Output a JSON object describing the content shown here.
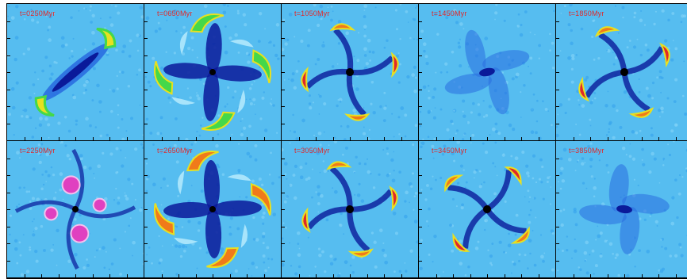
{
  "panels": [
    {
      "label": "t=0250Myr",
      "style": "bar"
    },
    {
      "label": "t=0650Myr",
      "style": "cross"
    },
    {
      "label": "t=1050Myr",
      "style": "spiral"
    },
    {
      "label": "t=1450Myr",
      "style": "diffuse"
    },
    {
      "label": "t=1850Myr",
      "style": "spiral"
    },
    {
      "label": "t=2250Myr",
      "style": "clumps"
    },
    {
      "label": "t=2650Myr",
      "style": "cross"
    },
    {
      "label": "t=3050Myr",
      "style": "spiral"
    },
    {
      "label": "t=3450Myr",
      "style": "spiral"
    },
    {
      "label": "t=3850Myr",
      "style": "diffuse"
    }
  ],
  "colors": {
    "background": "#56bdf0",
    "dark": "#0a1a9a",
    "mid": "#2a6ee0",
    "green": "#44d84a",
    "yellow": "#e8e020",
    "orange": "#f07a1a",
    "red": "#e0282a",
    "magenta": "#e040c0",
    "label": "#e0282a"
  }
}
